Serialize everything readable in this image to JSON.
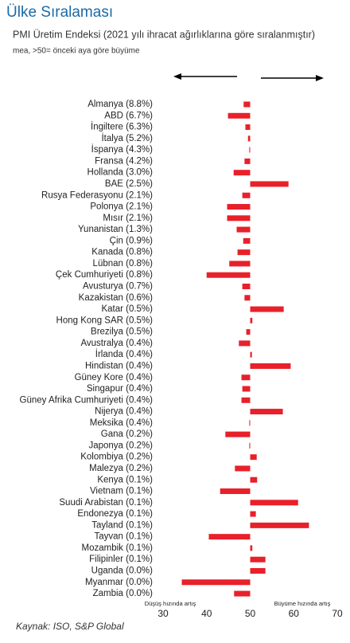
{
  "chart_data": {
    "type": "hbar",
    "title": "Ülke Sıralaması",
    "subtitle": "PMI Üretim Endeksi (2021 yılı ihracat ağırlıklarına göre sıralanmıştır)",
    "note": "mea, >50= önceki aya göre büyüme",
    "categories": [
      "Almanya (8.8%)",
      "ABD (6.7%)",
      "İngiltere (6.3%)",
      "İtalya (5.2%)",
      "İspanya (4.3%)",
      "Fransa (4.2%)",
      "Hollanda (3.0%)",
      "BAE (2.5%)",
      "Rusya Federasyonu (2.1%)",
      "Polonya (2.1%)",
      "Mısır (2.1%)",
      "Yunanistan (1.3%)",
      "Çin (0.9%)",
      "Kanada (0.8%)",
      "Lübnan (0.8%)",
      "Çek Cumhuriyeti (0.8%)",
      "Avusturya (0.7%)",
      "Kazakistan (0.6%)",
      "Katar (0.5%)",
      "Hong Kong SAR (0.5%)",
      "Brezilya (0.5%)",
      "Avustralya (0.4%)",
      "İrlanda (0.4%)",
      "Hindistan (0.4%)",
      "Güney Kore (0.4%)",
      "Singapur (0.4%)",
      "Güney Afrika Cumhuriyeti (0.4%)",
      "Nijerya (0.4%)",
      "Meksika (0.4%)",
      "Gana (0.2%)",
      "Japonya (0.2%)",
      "Kolombiya (0.2%)",
      "Malezya (0.2%)",
      "Kenya (0.1%)",
      "Vietnam (0.1%)",
      "Suudi Arabistan (0.1%)",
      "Endonezya (0.1%)",
      "Tayland (0.1%)",
      "Tayvan (0.1%)",
      "Mozambik (0.1%)",
      "Filipinler (0.1%)",
      "Uganda (0.0%)",
      "Myanmar (0.0%)",
      "Zambia (0.0%)"
    ],
    "values": [
      48.5,
      44.9,
      48.9,
      49.5,
      49.8,
      48.7,
      46.2,
      58.8,
      48.2,
      44.7,
      44.7,
      46.9,
      48.4,
      47.1,
      45.2,
      40.0,
      48.2,
      48.7,
      57.7,
      50.5,
      49.1,
      47.4,
      50.4,
      59.3,
      48.0,
      48.2,
      48.0,
      57.5,
      49.8,
      44.3,
      49.8,
      51.5,
      46.5,
      51.6,
      43.1,
      61.0,
      51.3,
      63.5,
      40.5,
      50.5,
      53.5,
      53.5,
      34.3,
      46.3
    ],
    "color": "#e8202a",
    "xlim": [
      30,
      70
    ],
    "xticks": [
      30,
      40,
      50,
      60,
      70
    ],
    "grid": false,
    "annotations": [
      "Düşüş hızında artış",
      "Büyüme hızında artış"
    ],
    "source": "Kaynak: ISO, S&P Global"
  }
}
